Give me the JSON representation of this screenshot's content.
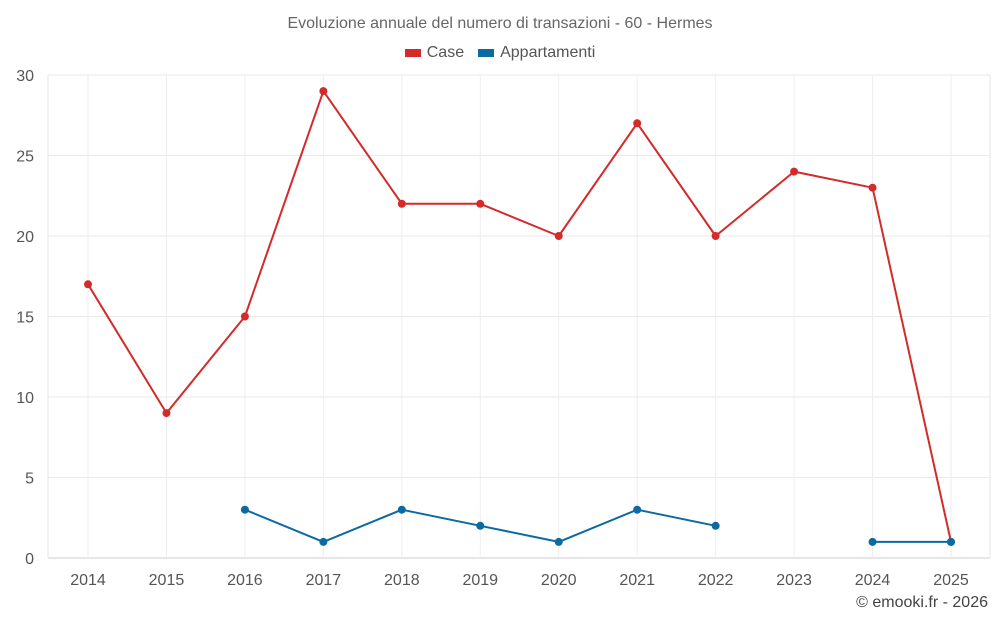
{
  "chart_data": {
    "type": "line",
    "title": "Evoluzione annuale del numero di transazioni - 60 - Hermes",
    "xlabel": "",
    "ylabel": "",
    "categories": [
      "2014",
      "2015",
      "2016",
      "2017",
      "2018",
      "2019",
      "2020",
      "2021",
      "2022",
      "2023",
      "2024",
      "2025"
    ],
    "ylim": [
      0,
      30
    ],
    "yticks": [
      0,
      5,
      10,
      15,
      20,
      25,
      30
    ],
    "grid": true,
    "legend_position": "top-center",
    "series": [
      {
        "name": "Case",
        "color": "#d32a2a",
        "values": [
          17,
          9,
          15,
          29,
          22,
          22,
          20,
          27,
          20,
          24,
          23,
          1
        ]
      },
      {
        "name": "Appartamenti",
        "color": "#0b6aa2",
        "values": [
          null,
          null,
          3,
          1,
          3,
          2,
          1,
          3,
          2,
          null,
          1,
          1
        ]
      }
    ]
  },
  "watermark": "© emooki.fr - 2026"
}
